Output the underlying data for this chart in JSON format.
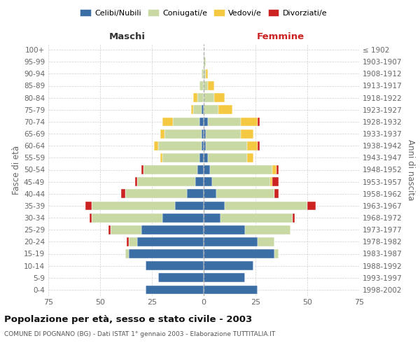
{
  "age_groups": [
    "0-4",
    "5-9",
    "10-14",
    "15-19",
    "20-24",
    "25-29",
    "30-34",
    "35-39",
    "40-44",
    "45-49",
    "50-54",
    "55-59",
    "60-64",
    "65-69",
    "70-74",
    "75-79",
    "80-84",
    "85-89",
    "90-94",
    "95-99",
    "100+"
  ],
  "birth_years": [
    "1998-2002",
    "1993-1997",
    "1988-1992",
    "1983-1987",
    "1978-1982",
    "1973-1977",
    "1968-1972",
    "1963-1967",
    "1958-1962",
    "1953-1957",
    "1948-1952",
    "1943-1947",
    "1938-1942",
    "1933-1937",
    "1928-1932",
    "1923-1927",
    "1918-1922",
    "1913-1917",
    "1908-1912",
    "1903-1907",
    "≤ 1902"
  ],
  "males": {
    "celibe": [
      28,
      22,
      28,
      36,
      32,
      30,
      20,
      14,
      8,
      4,
      3,
      2,
      1,
      1,
      2,
      1,
      0,
      0,
      0,
      0,
      0
    ],
    "coniugato": [
      0,
      0,
      0,
      2,
      4,
      15,
      34,
      40,
      30,
      28,
      26,
      18,
      21,
      18,
      13,
      4,
      3,
      2,
      1,
      0,
      0
    ],
    "vedovo": [
      0,
      0,
      0,
      0,
      0,
      0,
      0,
      0,
      0,
      0,
      0,
      1,
      2,
      2,
      5,
      1,
      2,
      0,
      0,
      0,
      0
    ],
    "divorziato": [
      0,
      0,
      0,
      0,
      1,
      1,
      1,
      3,
      2,
      1,
      1,
      0,
      0,
      0,
      0,
      0,
      0,
      0,
      0,
      0,
      0
    ]
  },
  "females": {
    "nubile": [
      26,
      20,
      24,
      34,
      26,
      20,
      8,
      10,
      6,
      4,
      3,
      2,
      1,
      1,
      2,
      0,
      0,
      0,
      0,
      0,
      0
    ],
    "coniugata": [
      0,
      0,
      0,
      2,
      8,
      22,
      35,
      40,
      28,
      28,
      30,
      19,
      20,
      17,
      16,
      7,
      5,
      2,
      1,
      1,
      0
    ],
    "vedova": [
      0,
      0,
      0,
      0,
      0,
      0,
      0,
      0,
      0,
      1,
      2,
      3,
      5,
      6,
      8,
      7,
      5,
      3,
      1,
      0,
      0
    ],
    "divorziata": [
      0,
      0,
      0,
      0,
      0,
      0,
      1,
      4,
      2,
      3,
      1,
      0,
      1,
      0,
      1,
      0,
      0,
      0,
      0,
      0,
      0
    ]
  },
  "colors": {
    "celibe": "#3a6ea5",
    "coniugato": "#c8d9a4",
    "vedovo": "#f5c842",
    "divorziato": "#cc2222"
  },
  "xlim": 75,
  "title": "Popolazione per età, sesso e stato civile - 2003",
  "subtitle": "COMUNE DI POGNANO (BG) - Dati ISTAT 1° gennaio 2003 - Elaborazione TUTTITALIA.IT",
  "ylabel_left": "Fasce di età",
  "ylabel_right": "Anni di nascita",
  "xlabel_left": "Maschi",
  "xlabel_right": "Femmine",
  "bg_color": "#ffffff",
  "grid_color": "#cccccc"
}
